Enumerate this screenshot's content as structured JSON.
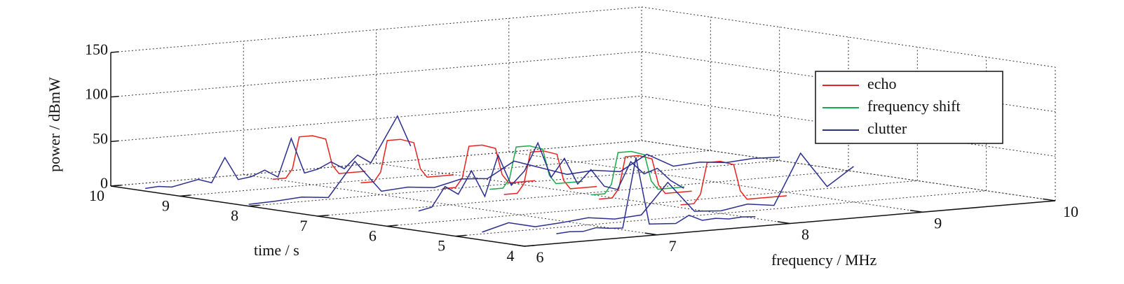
{
  "chart_data": {
    "type": "waterfall3d",
    "xlabel": "frequency / MHz",
    "ylabel": "time / s",
    "zlabel": "power / dBmW",
    "xlim": [
      6,
      10
    ],
    "xticks": [
      6,
      7,
      8,
      9,
      10
    ],
    "ylim": [
      4,
      10
    ],
    "yticks": [
      4,
      5,
      6,
      7,
      8,
      9,
      10
    ],
    "zlim": [
      0,
      150
    ],
    "zticks": [
      0,
      50,
      100,
      150
    ],
    "grid": true,
    "legend": "upper right",
    "series": [
      {
        "name": "echo",
        "color": "#e8221c",
        "traces": [
          {
            "time": 9,
            "frequency": [
              6.7,
              6.8,
              6.85,
              6.9,
              7.0,
              7.1,
              7.15,
              7.2,
              7.4
            ],
            "power": [
              10,
              10,
              20,
              55,
              55,
              50,
              20,
              10,
              10
            ]
          },
          {
            "time": 8.3,
            "frequency": [
              7.0,
              7.1,
              7.15,
              7.2,
              7.3,
              7.4,
              7.45,
              7.5,
              7.7
            ],
            "power": [
              10,
              10,
              20,
              55,
              55,
              50,
              20,
              10,
              10
            ]
          },
          {
            "time": 7.5,
            "frequency": [
              7.2,
              7.3,
              7.35,
              7.4,
              7.5,
              7.6,
              7.65,
              7.7,
              7.9
            ],
            "power": [
              10,
              10,
              20,
              55,
              55,
              50,
              20,
              10,
              10
            ]
          },
          {
            "time": 6.8,
            "frequency": [
              7.3,
              7.4,
              7.45,
              7.5,
              7.6,
              7.7,
              7.75,
              7.8,
              8.0
            ],
            "power": [
              10,
              10,
              20,
              55,
              55,
              50,
              20,
              10,
              10
            ]
          },
          {
            "time": 6,
            "frequency": [
              7.6,
              7.7,
              7.75,
              7.8,
              7.9,
              8.0,
              8.05,
              8.1,
              8.3
            ],
            "power": [
              10,
              10,
              20,
              55,
              55,
              50,
              20,
              10,
              10
            ]
          },
          {
            "time": 5.2,
            "frequency": [
              7.8,
              7.9,
              7.95,
              8.0,
              8.1,
              8.2,
              8.25,
              8.3,
              8.6
            ],
            "power": [
              10,
              10,
              20,
              55,
              55,
              50,
              20,
              10,
              10
            ]
          }
        ]
      },
      {
        "name": "frequency shift",
        "color": "#1aa84a",
        "traces": [
          {
            "time": 7.2,
            "frequency": [
              7.4,
              7.5,
              7.55,
              7.6,
              7.7,
              7.8,
              7.85,
              7.9,
              8.1
            ],
            "power": [
              10,
              10,
              20,
              55,
              55,
              50,
              20,
              10,
              10
            ]
          },
          {
            "time": 6.3,
            "frequency": [
              7.7,
              7.8,
              7.85,
              7.9,
              8.0,
              8.1,
              8.15,
              8.2,
              8.4
            ],
            "power": [
              10,
              10,
              20,
              55,
              55,
              50,
              20,
              10,
              10
            ]
          }
        ]
      },
      {
        "name": "clutter",
        "color": "#2b2f8f",
        "traces": [
          {
            "time": 9.5,
            "frequency": [
              6.0,
              6.1,
              6.2,
              6.3,
              6.4,
              6.5,
              6.6,
              6.7,
              6.8,
              6.9,
              7.0,
              7.1,
              7.2,
              7.3,
              7.4,
              7.5,
              7.6,
              7.7,
              7.8,
              7.9,
              8.0
            ],
            "power": [
              3,
              4,
              2,
              5,
              8,
              3,
              30,
              4,
              6,
              12,
              3,
              45,
              5,
              8,
              15,
              6,
              20,
              10,
              35,
              60,
              25
            ]
          },
          {
            "time": 8,
            "frequency": [
              6.0,
              6.2,
              6.4,
              6.6,
              6.8,
              7.0,
              7.2,
              7.4,
              7.6,
              7.8,
              8.0,
              8.2,
              8.4,
              8.6,
              8.8,
              9.0,
              9.2,
              9.4,
              9.6,
              9.8,
              10.0
            ],
            "power": [
              2,
              3,
              5,
              2,
              40,
              4,
              6,
              3,
              10,
              8,
              25,
              15,
              5,
              7,
              3,
              20,
              4,
              6,
              3,
              5,
              4
            ]
          },
          {
            "time": 6.5,
            "frequency": [
              6.5,
              6.6,
              6.7,
              6.8,
              6.9,
              7.0,
              7.1,
              7.2,
              7.3,
              7.4,
              7.5,
              7.6,
              7.7,
              7.8,
              7.9,
              8.0,
              8.1,
              8.2,
              8.3,
              8.4,
              8.5
            ],
            "power": [
              5,
              8,
              30,
              20,
              45,
              15,
              60,
              25,
              40,
              70,
              30,
              50,
              20,
              35,
              15,
              10,
              40,
              25,
              30,
              15,
              5
            ]
          },
          {
            "time": 5,
            "frequency": [
              6.2,
              6.4,
              6.6,
              6.8,
              7.0,
              7.2,
              7.4,
              7.6,
              7.8,
              8.0,
              8.2,
              8.4,
              8.6,
              8.8,
              9.0
            ],
            "power": [
              2,
              10,
              3,
              5,
              8,
              4,
              6,
              40,
              5,
              3,
              8,
              4,
              60,
              20,
              40
            ]
          },
          {
            "time": 4.5,
            "frequency": [
              6.5,
              6.6,
              6.7,
              6.8,
              6.9,
              7.0,
              7.1,
              7.2,
              7.3,
              7.4,
              7.5,
              7.6,
              7.7,
              7.8,
              7.9,
              8.0
            ],
            "power": [
              2,
              3,
              2,
              5,
              3,
              2,
              80,
              4,
              3,
              2,
              10,
              3,
              4,
              2,
              3,
              2
            ]
          }
        ]
      }
    ]
  }
}
